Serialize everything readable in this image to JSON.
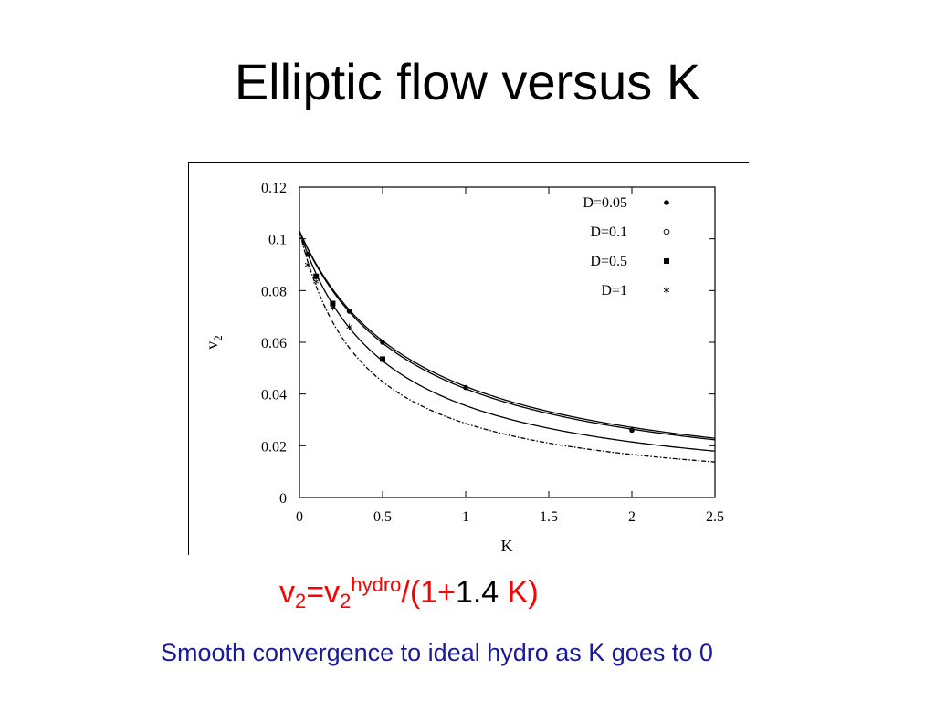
{
  "title": "Elliptic flow versus K",
  "formula": {
    "v": "v",
    "sub1": "2",
    "eq": "=v",
    "sub2": "2",
    "sup": "hydro",
    "rest": "/(1+",
    "coef": "1.4",
    "tail": " K)"
  },
  "caption": "Smooth convergence to ideal hydro as K goes to 0",
  "chart_data": {
    "type": "scatter",
    "title": "",
    "xlabel": "K",
    "ylabel_main": "v",
    "ylabel_sub": "2",
    "xlim": [
      0,
      2.5
    ],
    "ylim": [
      0,
      0.12
    ],
    "xticks": [
      0,
      0.5,
      1,
      1.5,
      2,
      2.5
    ],
    "xtick_labels": [
      "0",
      "0.5",
      "1",
      "1.5",
      "2",
      "2.5"
    ],
    "yticks": [
      0,
      0.02,
      0.04,
      0.06,
      0.08,
      0.1,
      0.12
    ],
    "ytick_labels": [
      "0",
      "0.02",
      "0.04",
      "0.06",
      "0.08",
      "0.1",
      "0.12"
    ],
    "grid": false,
    "legend_position": "top-right",
    "series": [
      {
        "name": "D=0.05",
        "marker": "dot",
        "points": [
          [
            0.05,
            0.094
          ],
          [
            0.3,
            0.072
          ],
          [
            0.5,
            0.06
          ],
          [
            1.0,
            0.0425
          ],
          [
            2.0,
            0.026
          ]
        ],
        "curve": {
          "v0": 0.103,
          "a": 1.4,
          "dash": "solid"
        }
      },
      {
        "name": "D=0.1",
        "marker": "circle",
        "points": [],
        "curve": {
          "v0": 0.103,
          "a": 1.45,
          "dash": "solid"
        }
      },
      {
        "name": "D=0.5",
        "marker": "square",
        "points": [
          [
            0.1,
            0.0855
          ],
          [
            0.2,
            0.075
          ],
          [
            0.5,
            0.0535
          ]
        ],
        "curve": {
          "v0": 0.103,
          "a": 1.9,
          "dash": "solid"
        }
      },
      {
        "name": "D=1",
        "marker": "star",
        "points": [
          [
            0.05,
            0.09
          ],
          [
            0.1,
            0.0835
          ],
          [
            0.2,
            0.0735
          ],
          [
            0.3,
            0.066
          ]
        ],
        "curve": {
          "v0": 0.103,
          "a": 2.6,
          "dash": "dashdot"
        }
      }
    ]
  }
}
